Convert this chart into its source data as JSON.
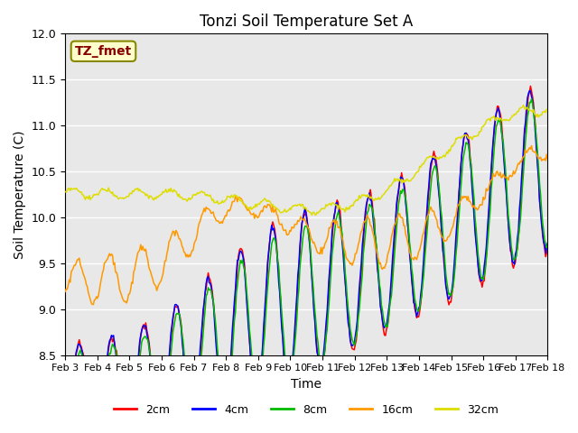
{
  "title": "Tonzi Soil Temperature Set A",
  "xlabel": "Time",
  "ylabel": "Soil Temperature (C)",
  "ylim": [
    8.5,
    12.0
  ],
  "yticks": [
    8.5,
    9.0,
    9.5,
    10.0,
    10.5,
    11.0,
    11.5,
    12.0
  ],
  "label_box": "TZ_fmet",
  "series_colors": [
    "#ff0000",
    "#0000ff",
    "#00bb00",
    "#ff9900",
    "#dddd00"
  ],
  "series_labels": [
    "2cm",
    "4cm",
    "8cm",
    "16cm",
    "32cm"
  ],
  "n_points": 480,
  "x_start": 3,
  "x_end": 18,
  "xtick_positions": [
    3,
    4,
    5,
    6,
    7,
    8,
    9,
    10,
    11,
    12,
    13,
    14,
    15,
    16,
    17,
    18
  ],
  "xtick_labels": [
    "Feb 3",
    "Feb 4",
    "Feb 5",
    "Feb 6",
    "Feb 7",
    "Feb 8",
    "Feb 9",
    "Feb 10",
    "Feb 11",
    "Feb 12",
    "Feb 13",
    "Feb 14",
    "Feb 15",
    "Feb 16",
    "Feb 17",
    "Feb 18"
  ],
  "plot_bg": "#e8e8e8",
  "grid_color": "#ffffff",
  "linewidth": 1.1
}
